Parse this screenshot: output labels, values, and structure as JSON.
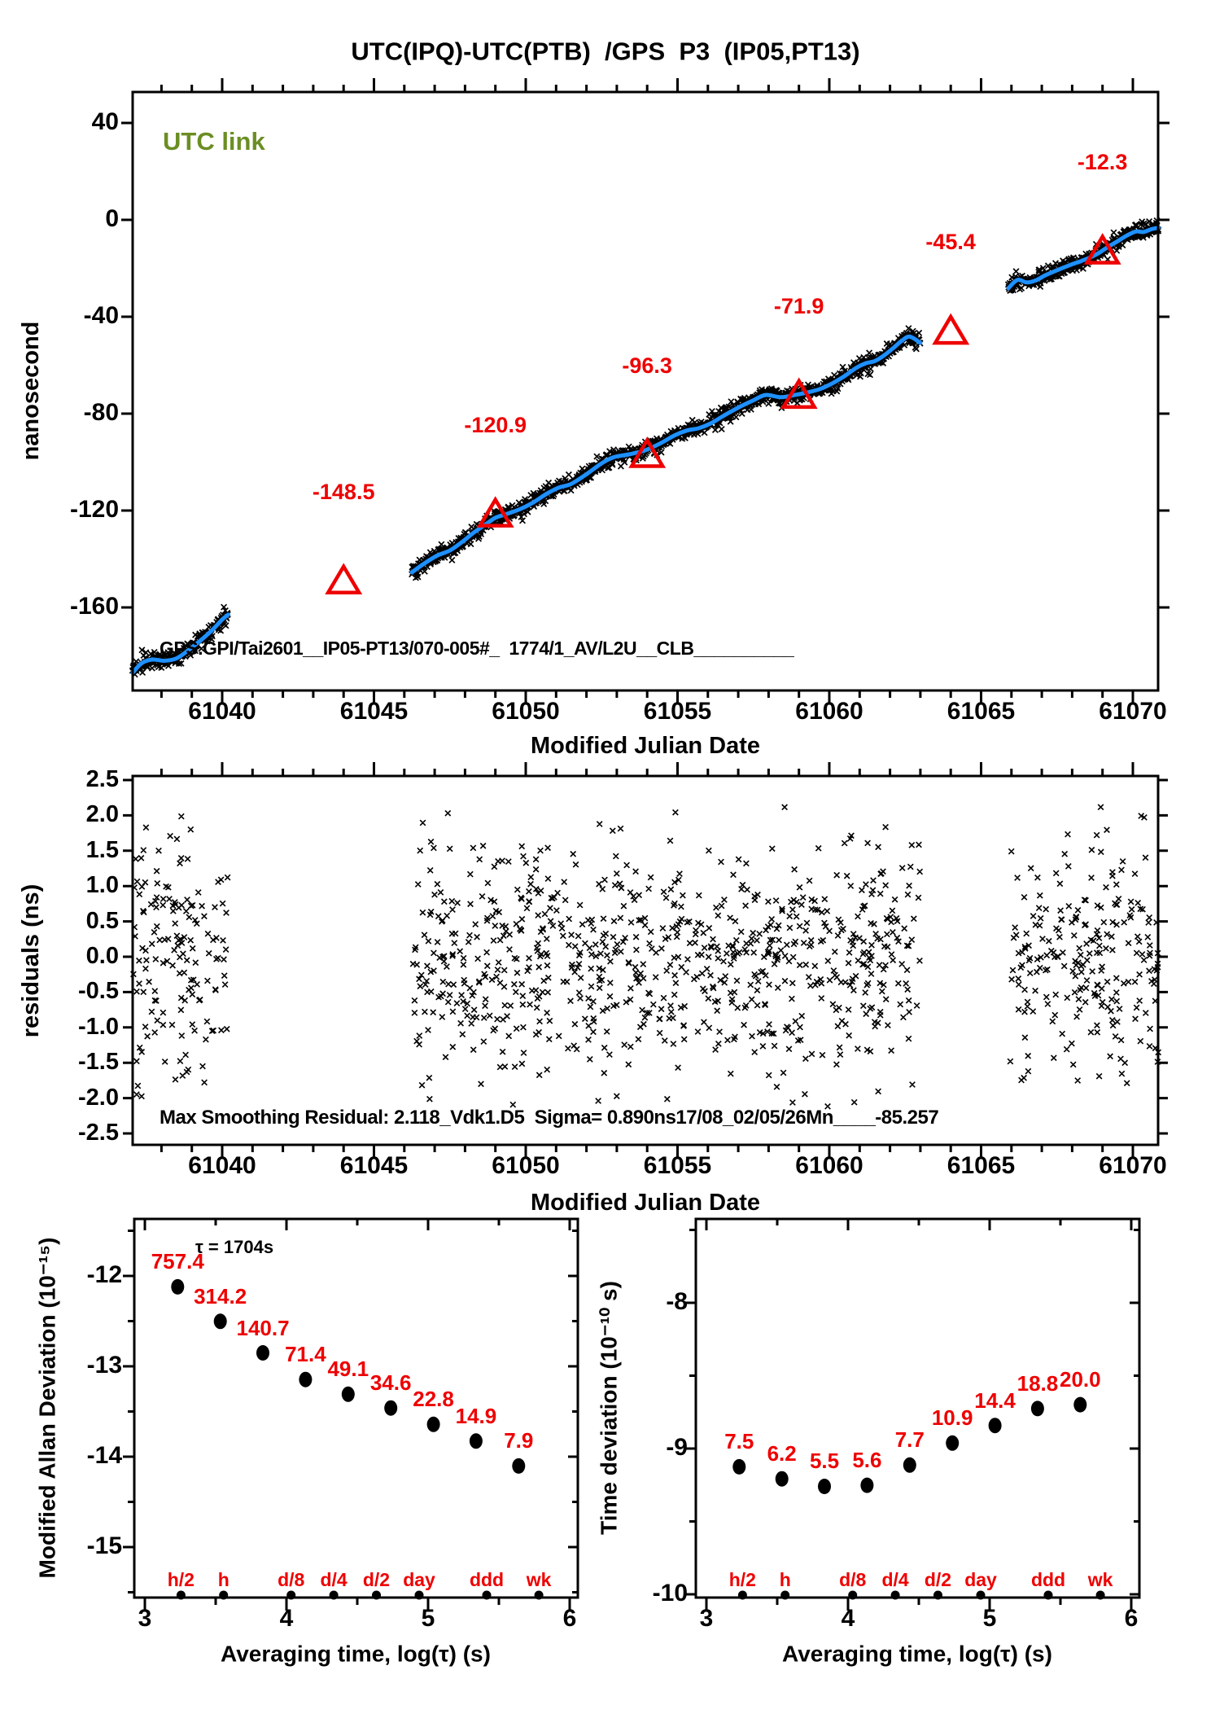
{
  "title": "UTC(IPQ)-UTC(PTB)  /GPS  P3  (IP05,PT13)",
  "colors": {
    "red": "#ee0000",
    "blue": "#1e90ff",
    "green": "#6b8e23",
    "axis": "#000000",
    "background": "#ffffff"
  },
  "chart_data": [
    {
      "id": "utc_link_time_series",
      "type": "line",
      "series_label": "UTC link",
      "xlabel": "Modified Julian Date",
      "ylabel": "nanosecond",
      "x_range": [
        61037.05,
        61070.83
      ],
      "y_range": [
        -194,
        52.8
      ],
      "x_major_ticks": [
        61040,
        61045,
        61050,
        61055,
        61060,
        61065,
        61070
      ],
      "x_minor_step": 1,
      "y_ticks": [
        40,
        0,
        -40,
        -80,
        -120,
        -160
      ],
      "annotation": "GPS.GPI/Tai2601__IP05-PT13/070-005#_  1774/1_AV/L2U__CLB__________",
      "marker": "x",
      "noise_ns": 1.6,
      "sample_step_mjd": 0.014,
      "label_offset_ns": 35.5,
      "triangles": [
        {
          "x": 61044,
          "y": -148.5,
          "label": "-148.5"
        },
        {
          "x": 61049,
          "y": -120.9,
          "label": "-120.9"
        },
        {
          "x": 61054,
          "y": -96.3,
          "label": "-96.3"
        },
        {
          "x": 61059,
          "y": -71.9,
          "label": "-71.9"
        },
        {
          "x": 61064,
          "y": -45.4,
          "label": "-45.4"
        },
        {
          "x": 61069,
          "y": -12.3,
          "label": "-12.3"
        }
      ],
      "segments": [
        {
          "anchors": [
            [
              61037.05,
              -187
            ],
            [
              61037.35,
              -183
            ],
            [
              61037.7,
              -181.5
            ],
            [
              61038.1,
              -182
            ],
            [
              61038.5,
              -181
            ],
            [
              61038.9,
              -177.5
            ],
            [
              61039.3,
              -173.5
            ],
            [
              61039.7,
              -169
            ],
            [
              61040.0,
              -165
            ],
            [
              61040.2,
              -163
            ]
          ]
        },
        {
          "anchors": [
            [
              61046.25,
              -145.5
            ],
            [
              61046.7,
              -141.5
            ],
            [
              61047.1,
              -138.5
            ],
            [
              61047.5,
              -136.5
            ],
            [
              61047.9,
              -133
            ],
            [
              61048.3,
              -129
            ],
            [
              61048.7,
              -125.5
            ],
            [
              61049.0,
              -123
            ],
            [
              61049.35,
              -121.5
            ],
            [
              61049.8,
              -119.5
            ],
            [
              61050.2,
              -117
            ],
            [
              61050.7,
              -113
            ],
            [
              61051.1,
              -110.5
            ],
            [
              61051.5,
              -109
            ],
            [
              61052.0,
              -105
            ],
            [
              61052.5,
              -100.5
            ],
            [
              61052.9,
              -98
            ],
            [
              61053.4,
              -96.8
            ],
            [
              61053.9,
              -95.3
            ],
            [
              61054.4,
              -92.5
            ],
            [
              61054.9,
              -89
            ],
            [
              61055.3,
              -87
            ],
            [
              61055.7,
              -86
            ],
            [
              61056.1,
              -84
            ],
            [
              61056.5,
              -81
            ],
            [
              61057.0,
              -77.5
            ],
            [
              61057.5,
              -74.5
            ],
            [
              61057.9,
              -72.3
            ],
            [
              61058.4,
              -73.2
            ],
            [
              61058.9,
              -72.2
            ],
            [
              61059.3,
              -71.2
            ],
            [
              61059.7,
              -69.8
            ],
            [
              61060.1,
              -67.5
            ],
            [
              61060.5,
              -64.5
            ],
            [
              61060.9,
              -61
            ],
            [
              61061.2,
              -59.2
            ],
            [
              61061.5,
              -58.3
            ],
            [
              61061.8,
              -56
            ],
            [
              61062.1,
              -53
            ],
            [
              61062.4,
              -49.8
            ],
            [
              61062.65,
              -48.2
            ],
            [
              61063.0,
              -50.8
            ]
          ]
        },
        {
          "anchors": [
            [
              61065.9,
              -28.2
            ],
            [
              61066.2,
              -24.8
            ],
            [
              61066.5,
              -25.8
            ],
            [
              61066.8,
              -25
            ],
            [
              61067.1,
              -23
            ],
            [
              61067.5,
              -20.8
            ],
            [
              61067.9,
              -18.8
            ],
            [
              61068.3,
              -17
            ],
            [
              61068.6,
              -15.5
            ],
            [
              61068.9,
              -13.5
            ],
            [
              61069.2,
              -11
            ],
            [
              61069.5,
              -8.8
            ],
            [
              61069.8,
              -6.5
            ],
            [
              61070.1,
              -4.8
            ],
            [
              61070.35,
              -5
            ],
            [
              61070.6,
              -3.9
            ],
            [
              61070.85,
              -3.2
            ]
          ]
        }
      ]
    },
    {
      "id": "smoothing_residuals",
      "type": "scatter",
      "xlabel": "Modified Julian Date",
      "ylabel": "residuals (ns)",
      "x_range": [
        61037.05,
        61070.83
      ],
      "y_range": [
        -2.66,
        2.56
      ],
      "x_major_ticks": [
        61040,
        61045,
        61050,
        61055,
        61060,
        61065,
        61070
      ],
      "x_minor_step": 1,
      "y_ticks": [
        2.5,
        2.0,
        1.5,
        1.0,
        0.5,
        0.0,
        -0.5,
        -1.0,
        -1.5,
        -2.0,
        -2.5
      ],
      "sigma_ns": 0.89,
      "max_residual_ns": 2.118,
      "windows": [
        {
          "x0": 61037.05,
          "x1": 61040.2,
          "n": 150
        },
        {
          "x0": 61046.25,
          "x1": 61063.0,
          "n": 800
        },
        {
          "x0": 61065.9,
          "x1": 61070.85,
          "n": 230
        }
      ],
      "annotation": "Max Smoothing Residual: 2.118_Vdk1.D5  Sigma= 0.890ns17/08_02/05/26Mn____-85.257"
    },
    {
      "id": "modified_allan_deviation",
      "type": "scatter",
      "xlabel": "Averaging time, log(τ) (s)",
      "ylabel": "Modified Allan Deviation (10⁻¹⁵)",
      "x_ticks": [
        3,
        4,
        5,
        6
      ],
      "x_minor_step": 0.5,
      "y_ticks": [
        -12,
        -13,
        -14,
        -15
      ],
      "y_minor_step": 0.5,
      "x_range": [
        2.93,
        6.06
      ],
      "y_range": [
        -15.56,
        -11.37
      ],
      "tau_note": "τ = 1704s",
      "unit_exp": -15,
      "tau_seconds": [
        1704,
        3408,
        6816,
        13632,
        27264,
        54528,
        109056,
        218112,
        436224
      ],
      "values": [
        757.4,
        314.2,
        140.7,
        71.4,
        49.1,
        34.6,
        22.8,
        14.9,
        7.9
      ],
      "tau_marks": [
        {
          "label": "h/2",
          "log_tau": 3.255
        },
        {
          "label": "h",
          "log_tau": 3.556
        },
        {
          "label": "d/8",
          "log_tau": 4.033
        },
        {
          "label": "d/4",
          "log_tau": 4.334
        },
        {
          "label": "d/2",
          "log_tau": 4.635
        },
        {
          "label": "day",
          "log_tau": 4.937
        },
        {
          "label": "ddd",
          "log_tau": 5.414
        },
        {
          "label": "wk",
          "log_tau": 5.782
        }
      ]
    },
    {
      "id": "time_deviation",
      "type": "scatter",
      "xlabel": "Averaging time, log(τ) (s)",
      "ylabel": "Time deviation (10⁻¹⁰ s)",
      "x_ticks": [
        3,
        4,
        5,
        6
      ],
      "x_minor_step": 0.5,
      "y_ticks": [
        -8,
        -9,
        -10
      ],
      "y_minor_step": 0.5,
      "x_range": [
        2.93,
        6.06
      ],
      "y_range": [
        -10.02,
        -7.42
      ],
      "unit_exp": -10,
      "tau_seconds": [
        1704,
        3408,
        6816,
        13632,
        27264,
        54528,
        109056,
        218112,
        436224
      ],
      "values": [
        7.5,
        6.2,
        5.5,
        5.6,
        7.7,
        10.9,
        14.4,
        18.8,
        20.0
      ],
      "tau_marks": [
        {
          "label": "h/2",
          "log_tau": 3.255
        },
        {
          "label": "h",
          "log_tau": 3.556
        },
        {
          "label": "d/8",
          "log_tau": 4.033
        },
        {
          "label": "d/4",
          "log_tau": 4.334
        },
        {
          "label": "d/2",
          "log_tau": 4.635
        },
        {
          "label": "day",
          "log_tau": 4.937
        },
        {
          "label": "ddd",
          "log_tau": 5.414
        },
        {
          "label": "wk",
          "log_tau": 5.782
        }
      ]
    }
  ]
}
